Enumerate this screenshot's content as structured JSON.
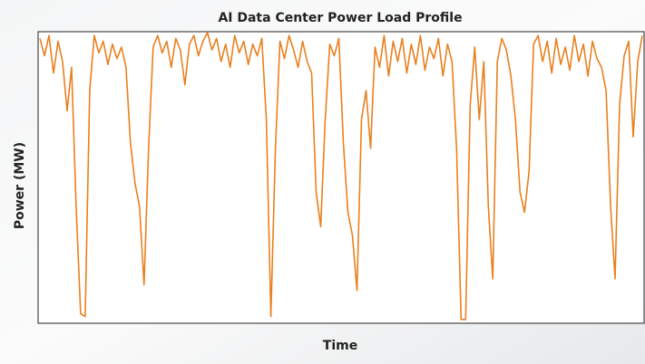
{
  "chart_data": {
    "type": "line",
    "title": "AI Data Center Power Load Profile",
    "x_label": "Time",
    "y_label": "Power (MW)",
    "color": "#e8801f",
    "ylim": [
      0,
      100
    ],
    "values": [
      98,
      92,
      99,
      86,
      97,
      90,
      73,
      88,
      40,
      3,
      2,
      80,
      99,
      93,
      97,
      89,
      96,
      91,
      95,
      88,
      62,
      48,
      40,
      13,
      60,
      95,
      99,
      93,
      97,
      88,
      98,
      94,
      82,
      96,
      99,
      92,
      97,
      100,
      94,
      98,
      90,
      96,
      88,
      99,
      93,
      97,
      89,
      96,
      92,
      98,
      70,
      2,
      60,
      97,
      91,
      99,
      94,
      88,
      97,
      90,
      86,
      45,
      33,
      70,
      96,
      92,
      98,
      62,
      38,
      30,
      11,
      70,
      80,
      60,
      95,
      88,
      99,
      85,
      97,
      90,
      98,
      86,
      96,
      89,
      99,
      87,
      95,
      91,
      98,
      85,
      96,
      90,
      60,
      1,
      1,
      75,
      95,
      70,
      90,
      40,
      15,
      90,
      98,
      94,
      85,
      70,
      45,
      38,
      52,
      96,
      99,
      90,
      97,
      86,
      98,
      89,
      95,
      87,
      99,
      90,
      96,
      85,
      97,
      91,
      88,
      80,
      40,
      15,
      75,
      92,
      97,
      64,
      90,
      99
    ]
  }
}
